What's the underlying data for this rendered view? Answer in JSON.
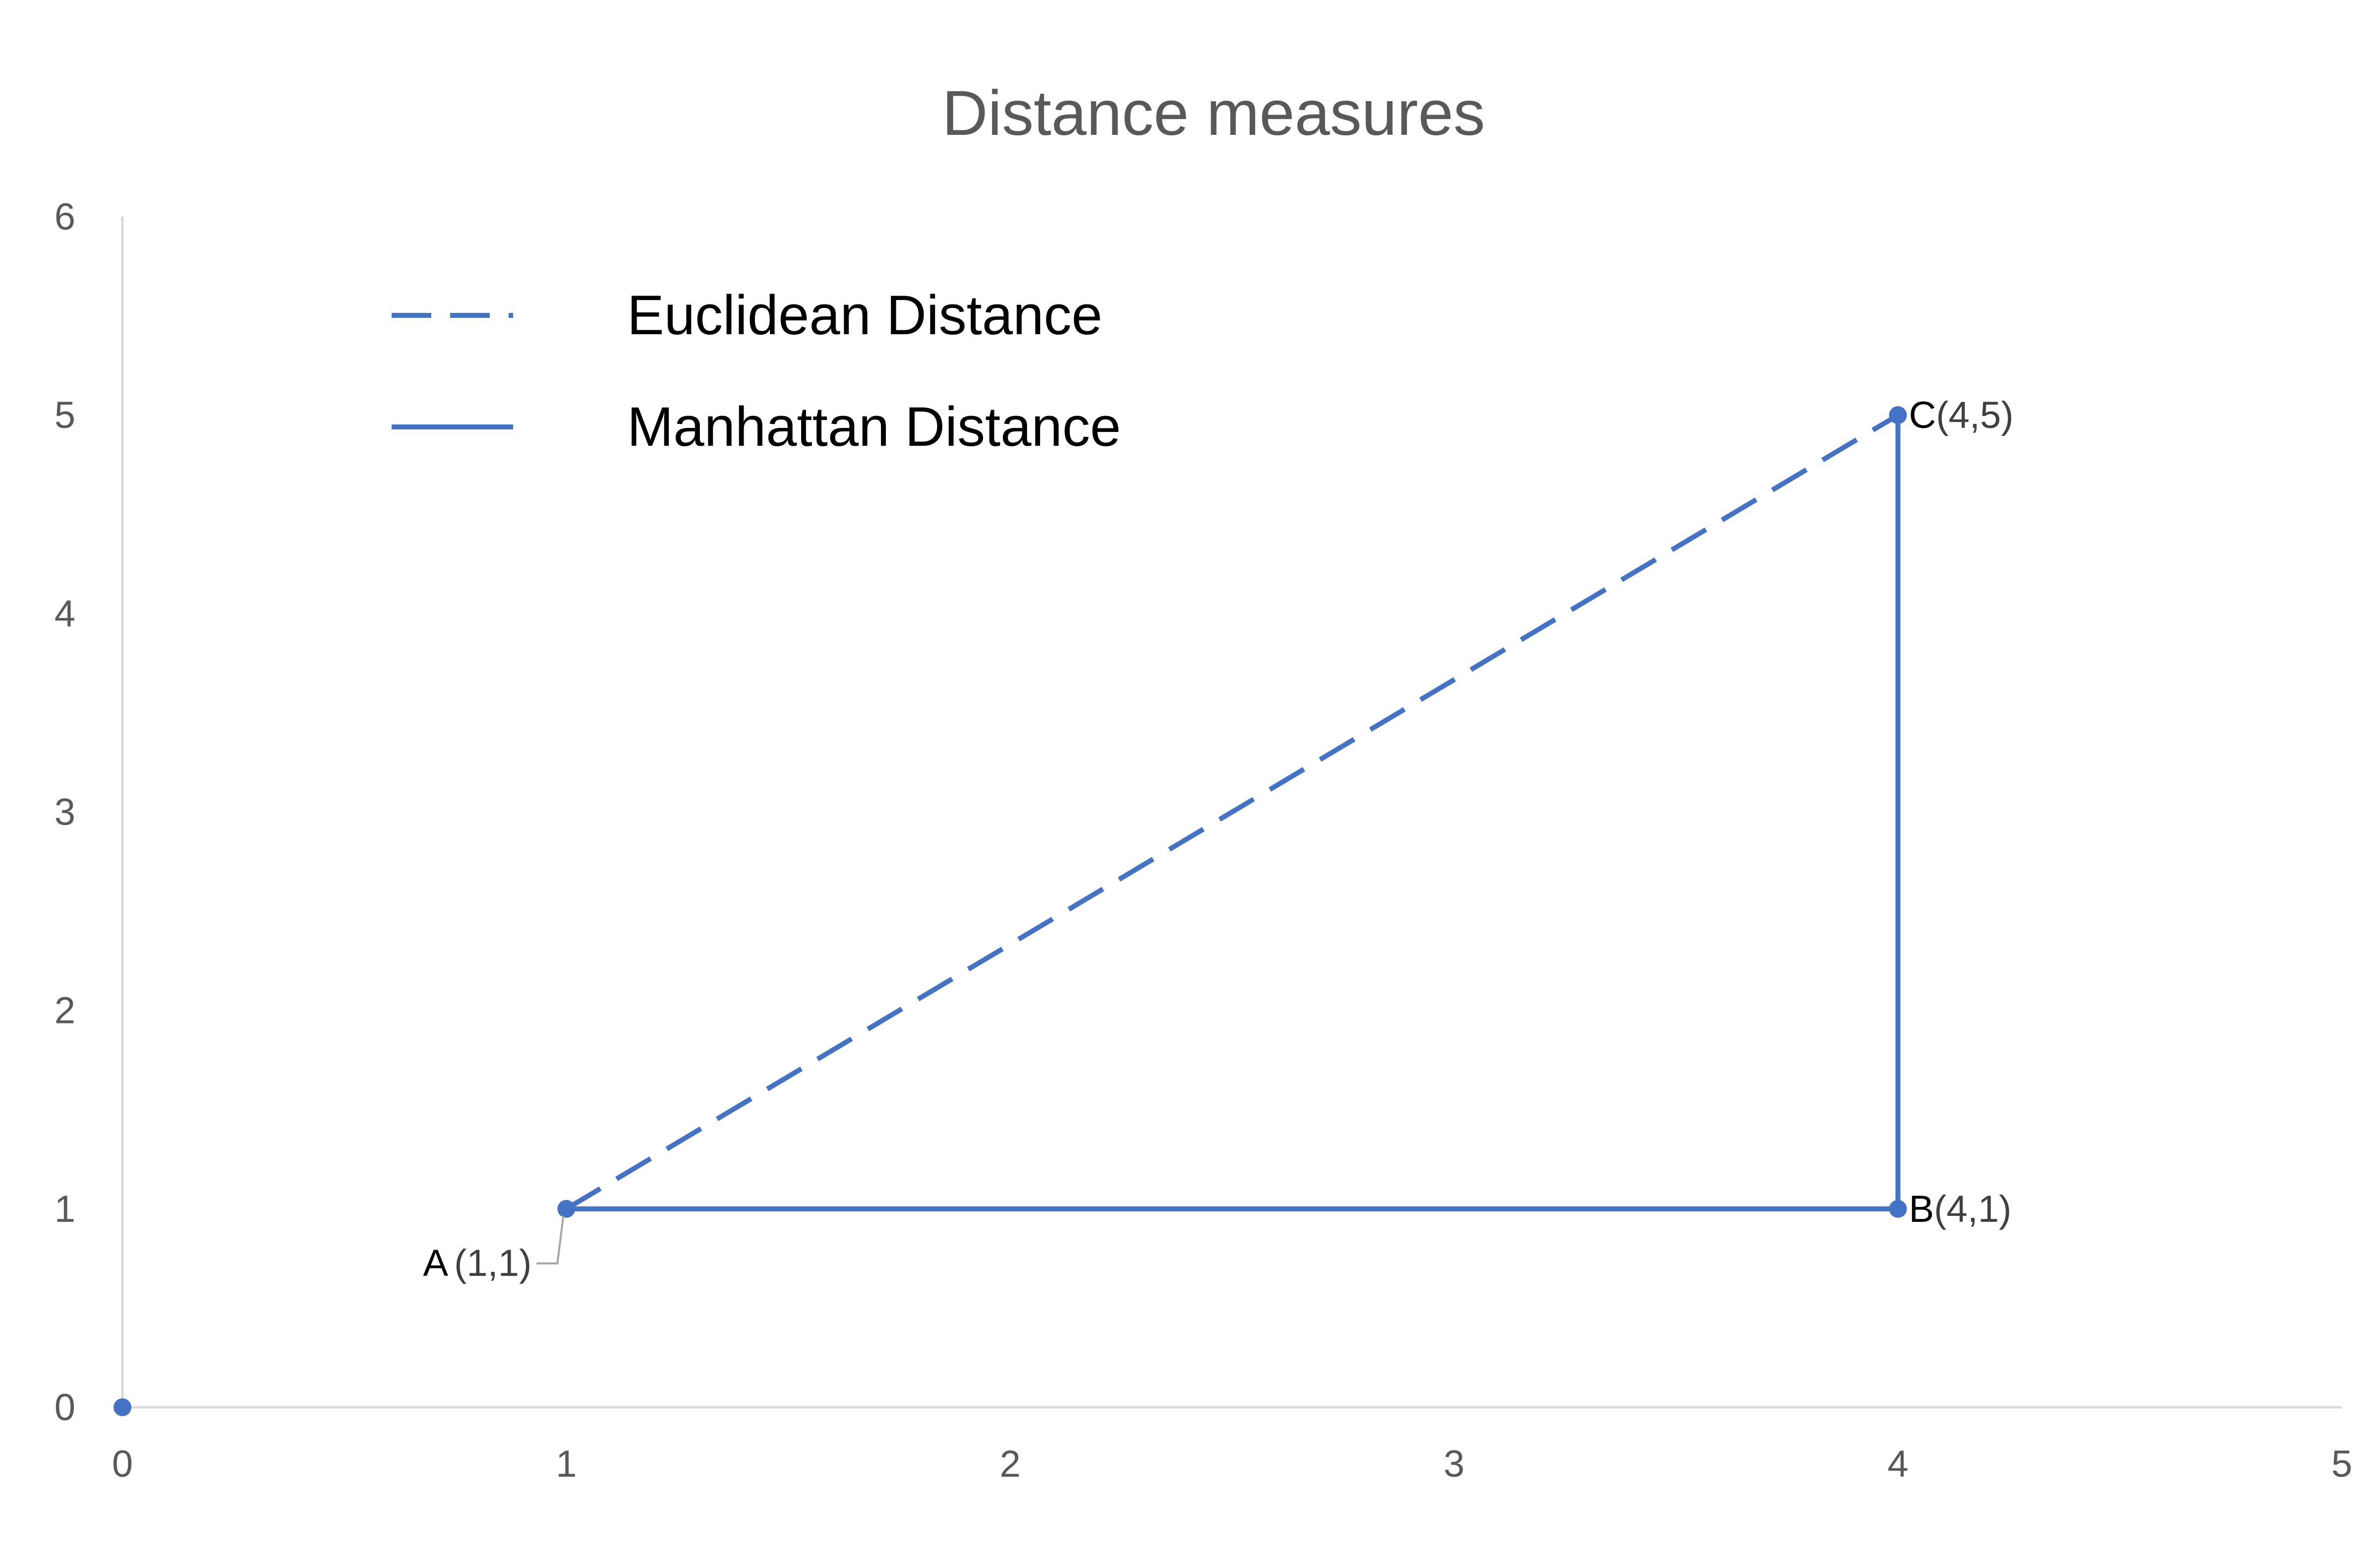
{
  "chart_data": {
    "type": "scatter",
    "title": "Distance measures",
    "xlabel": "",
    "ylabel": "",
    "xlim": [
      0,
      5
    ],
    "ylim": [
      0,
      6
    ],
    "xticks": [
      "0",
      "1",
      "2",
      "3",
      "4",
      "5"
    ],
    "yticks": [
      "0",
      "1",
      "2",
      "3",
      "4",
      "5",
      "6"
    ],
    "grid": false,
    "legend_position": "top-left",
    "color": "#4472C4",
    "points": [
      {
        "name": "origin",
        "x": 0,
        "y": 0,
        "label": "",
        "coords": ""
      },
      {
        "name": "A",
        "x": 1,
        "y": 1,
        "label": "A",
        "coords": "(1,1)"
      },
      {
        "name": "B",
        "x": 4,
        "y": 1,
        "label": "B",
        "coords": "(4,1)"
      },
      {
        "name": "C",
        "x": 4,
        "y": 5,
        "label": "C",
        "coords": "(4,5)"
      }
    ],
    "series": [
      {
        "name": "Euclidean Distance",
        "style": "dashed",
        "x": [
          1,
          4
        ],
        "y": [
          1,
          5
        ]
      },
      {
        "name": "Manhattan Distance",
        "style": "solid",
        "x": [
          1,
          4,
          4
        ],
        "y": [
          1,
          1,
          5
        ]
      }
    ]
  }
}
